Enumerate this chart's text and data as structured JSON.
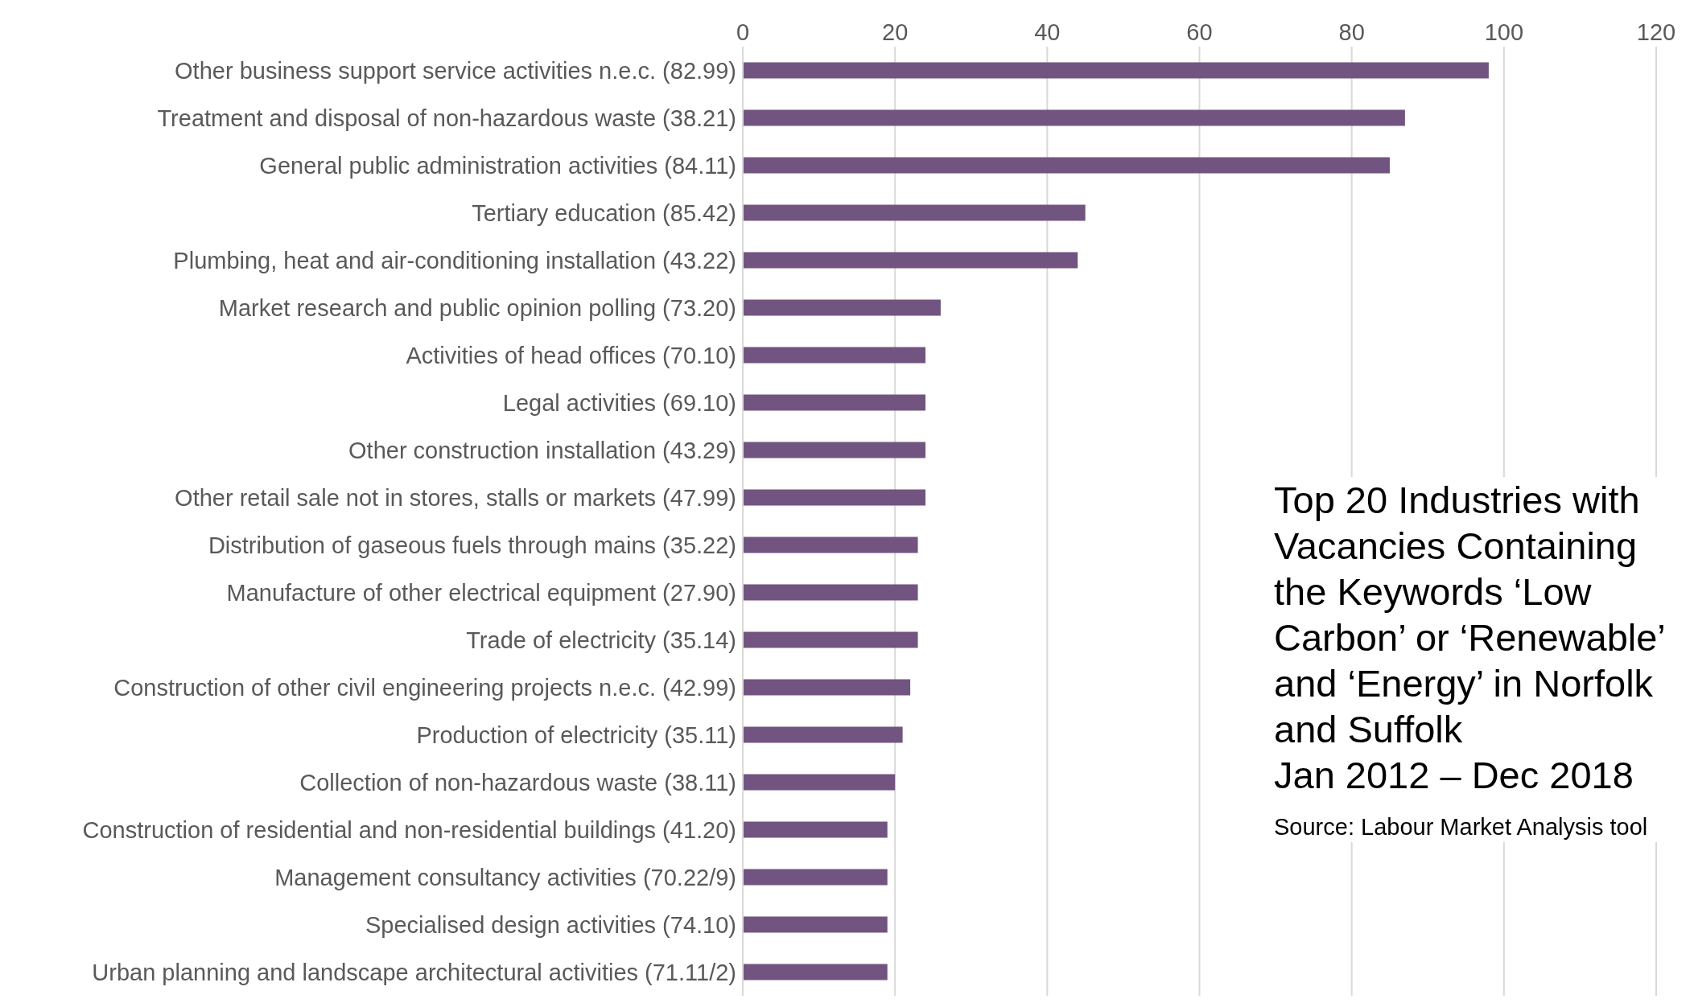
{
  "chart_data": {
    "type": "bar",
    "orientation": "horizontal",
    "title": "Top 20 Industries with Vacancies Containing the Keywords ‘Low Carbon’ or ‘Renewable’ and ‘Energy’ in Norfolk and Suffolk",
    "subtitle": "Jan 2012 – Dec 2018",
    "annotations": [
      "Source: Labour Market Analysis tool"
    ],
    "categories": [
      "Other business support service activities n.e.c. (82.99)",
      "Treatment and disposal of non-hazardous waste (38.21)",
      "General public administration activities (84.11)",
      "Tertiary education (85.42)",
      "Plumbing, heat and air-conditioning installation (43.22)",
      "Market research and public opinion polling (73.20)",
      "Activities of head offices (70.10)",
      "Legal activities (69.10)",
      "Other construction installation (43.29)",
      "Other retail sale not in stores, stalls or markets (47.99)",
      "Distribution of gaseous fuels through mains (35.22)",
      "Manufacture of other electrical equipment (27.90)",
      "Trade of electricity (35.14)",
      "Construction of other civil engineering projects n.e.c. (42.99)",
      "Production of electricity (35.11)",
      "Collection of non-hazardous waste (38.11)",
      "Construction of residential and non-residential buildings (41.20)",
      "Management consultancy activities (70.22/9)",
      "Specialised design activities (74.10)",
      "Urban planning and landscape architectural activities (71.11/2)"
    ],
    "values": [
      98,
      87,
      85,
      45,
      44,
      26,
      24,
      24,
      24,
      24,
      23,
      23,
      23,
      22,
      21,
      20,
      19,
      19,
      19,
      19
    ],
    "color": "#725480",
    "xlim": [
      0,
      120
    ],
    "xticks": [
      0,
      20,
      40,
      60,
      80,
      100,
      120
    ],
    "grid": "x"
  }
}
